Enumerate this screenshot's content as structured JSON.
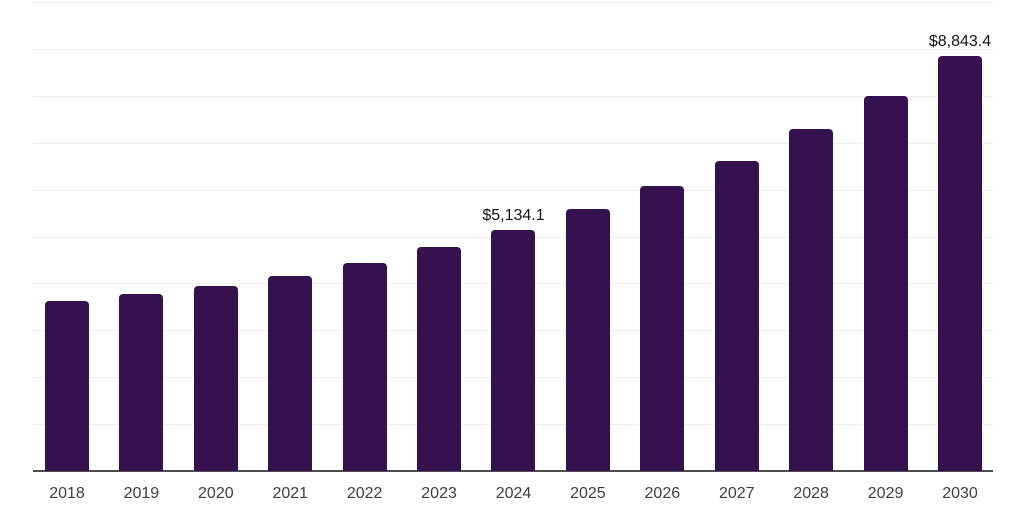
{
  "chart_data": {
    "type": "bar",
    "title": "",
    "xlabel": "",
    "ylabel": "",
    "categories": [
      "2018",
      "2019",
      "2020",
      "2021",
      "2022",
      "2023",
      "2024",
      "2025",
      "2026",
      "2027",
      "2028",
      "2029",
      "2030"
    ],
    "values": [
      3615,
      3780,
      3935,
      4165,
      4445,
      4785,
      5134.1,
      5590,
      6080,
      6610,
      7290,
      7990,
      8843.4
    ],
    "bar_labels": [
      "",
      "",
      "",
      "",
      "",
      "",
      "$5,134.1",
      "",
      "",
      "",
      "",
      "",
      "$8,843.4"
    ],
    "ylim": [
      0,
      10000
    ],
    "ytick_step": 1000,
    "y_tick_labels_visible": false,
    "grid": "horizontal",
    "legend": "none",
    "colors": {
      "bar": "#361150",
      "gridline": "#efefef",
      "axis_line": "#4d4d4d",
      "x_tick_label": "#3f3f3f",
      "data_label": "#141414",
      "background": "#ffffff"
    }
  }
}
